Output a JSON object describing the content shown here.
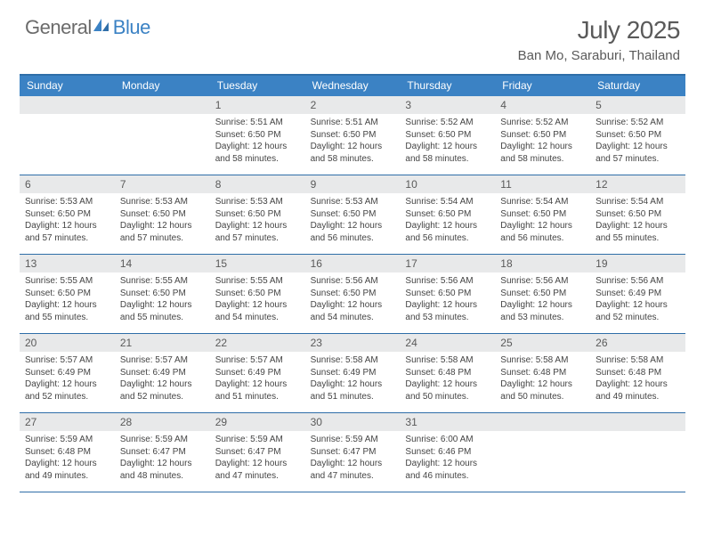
{
  "brand": {
    "part1": "General",
    "part2": "Blue"
  },
  "title": "July 2025",
  "location": "Ban Mo, Saraburi, Thailand",
  "colors": {
    "header_bg": "#3b82c4",
    "header_border": "#2f6ea8",
    "daynum_bg": "#e8e9ea",
    "text": "#5a5a5a",
    "body_text": "#444444",
    "brand_gray": "#6b6b6b",
    "brand_blue": "#3b82c4"
  },
  "weekdays": [
    "Sunday",
    "Monday",
    "Tuesday",
    "Wednesday",
    "Thursday",
    "Friday",
    "Saturday"
  ],
  "weeks": [
    [
      null,
      null,
      {
        "n": "1",
        "sr": "5:51 AM",
        "ss": "6:50 PM",
        "dl": "12 hours and 58 minutes."
      },
      {
        "n": "2",
        "sr": "5:51 AM",
        "ss": "6:50 PM",
        "dl": "12 hours and 58 minutes."
      },
      {
        "n": "3",
        "sr": "5:52 AM",
        "ss": "6:50 PM",
        "dl": "12 hours and 58 minutes."
      },
      {
        "n": "4",
        "sr": "5:52 AM",
        "ss": "6:50 PM",
        "dl": "12 hours and 58 minutes."
      },
      {
        "n": "5",
        "sr": "5:52 AM",
        "ss": "6:50 PM",
        "dl": "12 hours and 57 minutes."
      }
    ],
    [
      {
        "n": "6",
        "sr": "5:53 AM",
        "ss": "6:50 PM",
        "dl": "12 hours and 57 minutes."
      },
      {
        "n": "7",
        "sr": "5:53 AM",
        "ss": "6:50 PM",
        "dl": "12 hours and 57 minutes."
      },
      {
        "n": "8",
        "sr": "5:53 AM",
        "ss": "6:50 PM",
        "dl": "12 hours and 57 minutes."
      },
      {
        "n": "9",
        "sr": "5:53 AM",
        "ss": "6:50 PM",
        "dl": "12 hours and 56 minutes."
      },
      {
        "n": "10",
        "sr": "5:54 AM",
        "ss": "6:50 PM",
        "dl": "12 hours and 56 minutes."
      },
      {
        "n": "11",
        "sr": "5:54 AM",
        "ss": "6:50 PM",
        "dl": "12 hours and 56 minutes."
      },
      {
        "n": "12",
        "sr": "5:54 AM",
        "ss": "6:50 PM",
        "dl": "12 hours and 55 minutes."
      }
    ],
    [
      {
        "n": "13",
        "sr": "5:55 AM",
        "ss": "6:50 PM",
        "dl": "12 hours and 55 minutes."
      },
      {
        "n": "14",
        "sr": "5:55 AM",
        "ss": "6:50 PM",
        "dl": "12 hours and 55 minutes."
      },
      {
        "n": "15",
        "sr": "5:55 AM",
        "ss": "6:50 PM",
        "dl": "12 hours and 54 minutes."
      },
      {
        "n": "16",
        "sr": "5:56 AM",
        "ss": "6:50 PM",
        "dl": "12 hours and 54 minutes."
      },
      {
        "n": "17",
        "sr": "5:56 AM",
        "ss": "6:50 PM",
        "dl": "12 hours and 53 minutes."
      },
      {
        "n": "18",
        "sr": "5:56 AM",
        "ss": "6:50 PM",
        "dl": "12 hours and 53 minutes."
      },
      {
        "n": "19",
        "sr": "5:56 AM",
        "ss": "6:49 PM",
        "dl": "12 hours and 52 minutes."
      }
    ],
    [
      {
        "n": "20",
        "sr": "5:57 AM",
        "ss": "6:49 PM",
        "dl": "12 hours and 52 minutes."
      },
      {
        "n": "21",
        "sr": "5:57 AM",
        "ss": "6:49 PM",
        "dl": "12 hours and 52 minutes."
      },
      {
        "n": "22",
        "sr": "5:57 AM",
        "ss": "6:49 PM",
        "dl": "12 hours and 51 minutes."
      },
      {
        "n": "23",
        "sr": "5:58 AM",
        "ss": "6:49 PM",
        "dl": "12 hours and 51 minutes."
      },
      {
        "n": "24",
        "sr": "5:58 AM",
        "ss": "6:48 PM",
        "dl": "12 hours and 50 minutes."
      },
      {
        "n": "25",
        "sr": "5:58 AM",
        "ss": "6:48 PM",
        "dl": "12 hours and 50 minutes."
      },
      {
        "n": "26",
        "sr": "5:58 AM",
        "ss": "6:48 PM",
        "dl": "12 hours and 49 minutes."
      }
    ],
    [
      {
        "n": "27",
        "sr": "5:59 AM",
        "ss": "6:48 PM",
        "dl": "12 hours and 49 minutes."
      },
      {
        "n": "28",
        "sr": "5:59 AM",
        "ss": "6:47 PM",
        "dl": "12 hours and 48 minutes."
      },
      {
        "n": "29",
        "sr": "5:59 AM",
        "ss": "6:47 PM",
        "dl": "12 hours and 47 minutes."
      },
      {
        "n": "30",
        "sr": "5:59 AM",
        "ss": "6:47 PM",
        "dl": "12 hours and 47 minutes."
      },
      {
        "n": "31",
        "sr": "6:00 AM",
        "ss": "6:46 PM",
        "dl": "12 hours and 46 minutes."
      },
      null,
      null
    ]
  ],
  "labels": {
    "sunrise": "Sunrise:",
    "sunset": "Sunset:",
    "daylight": "Daylight:"
  }
}
